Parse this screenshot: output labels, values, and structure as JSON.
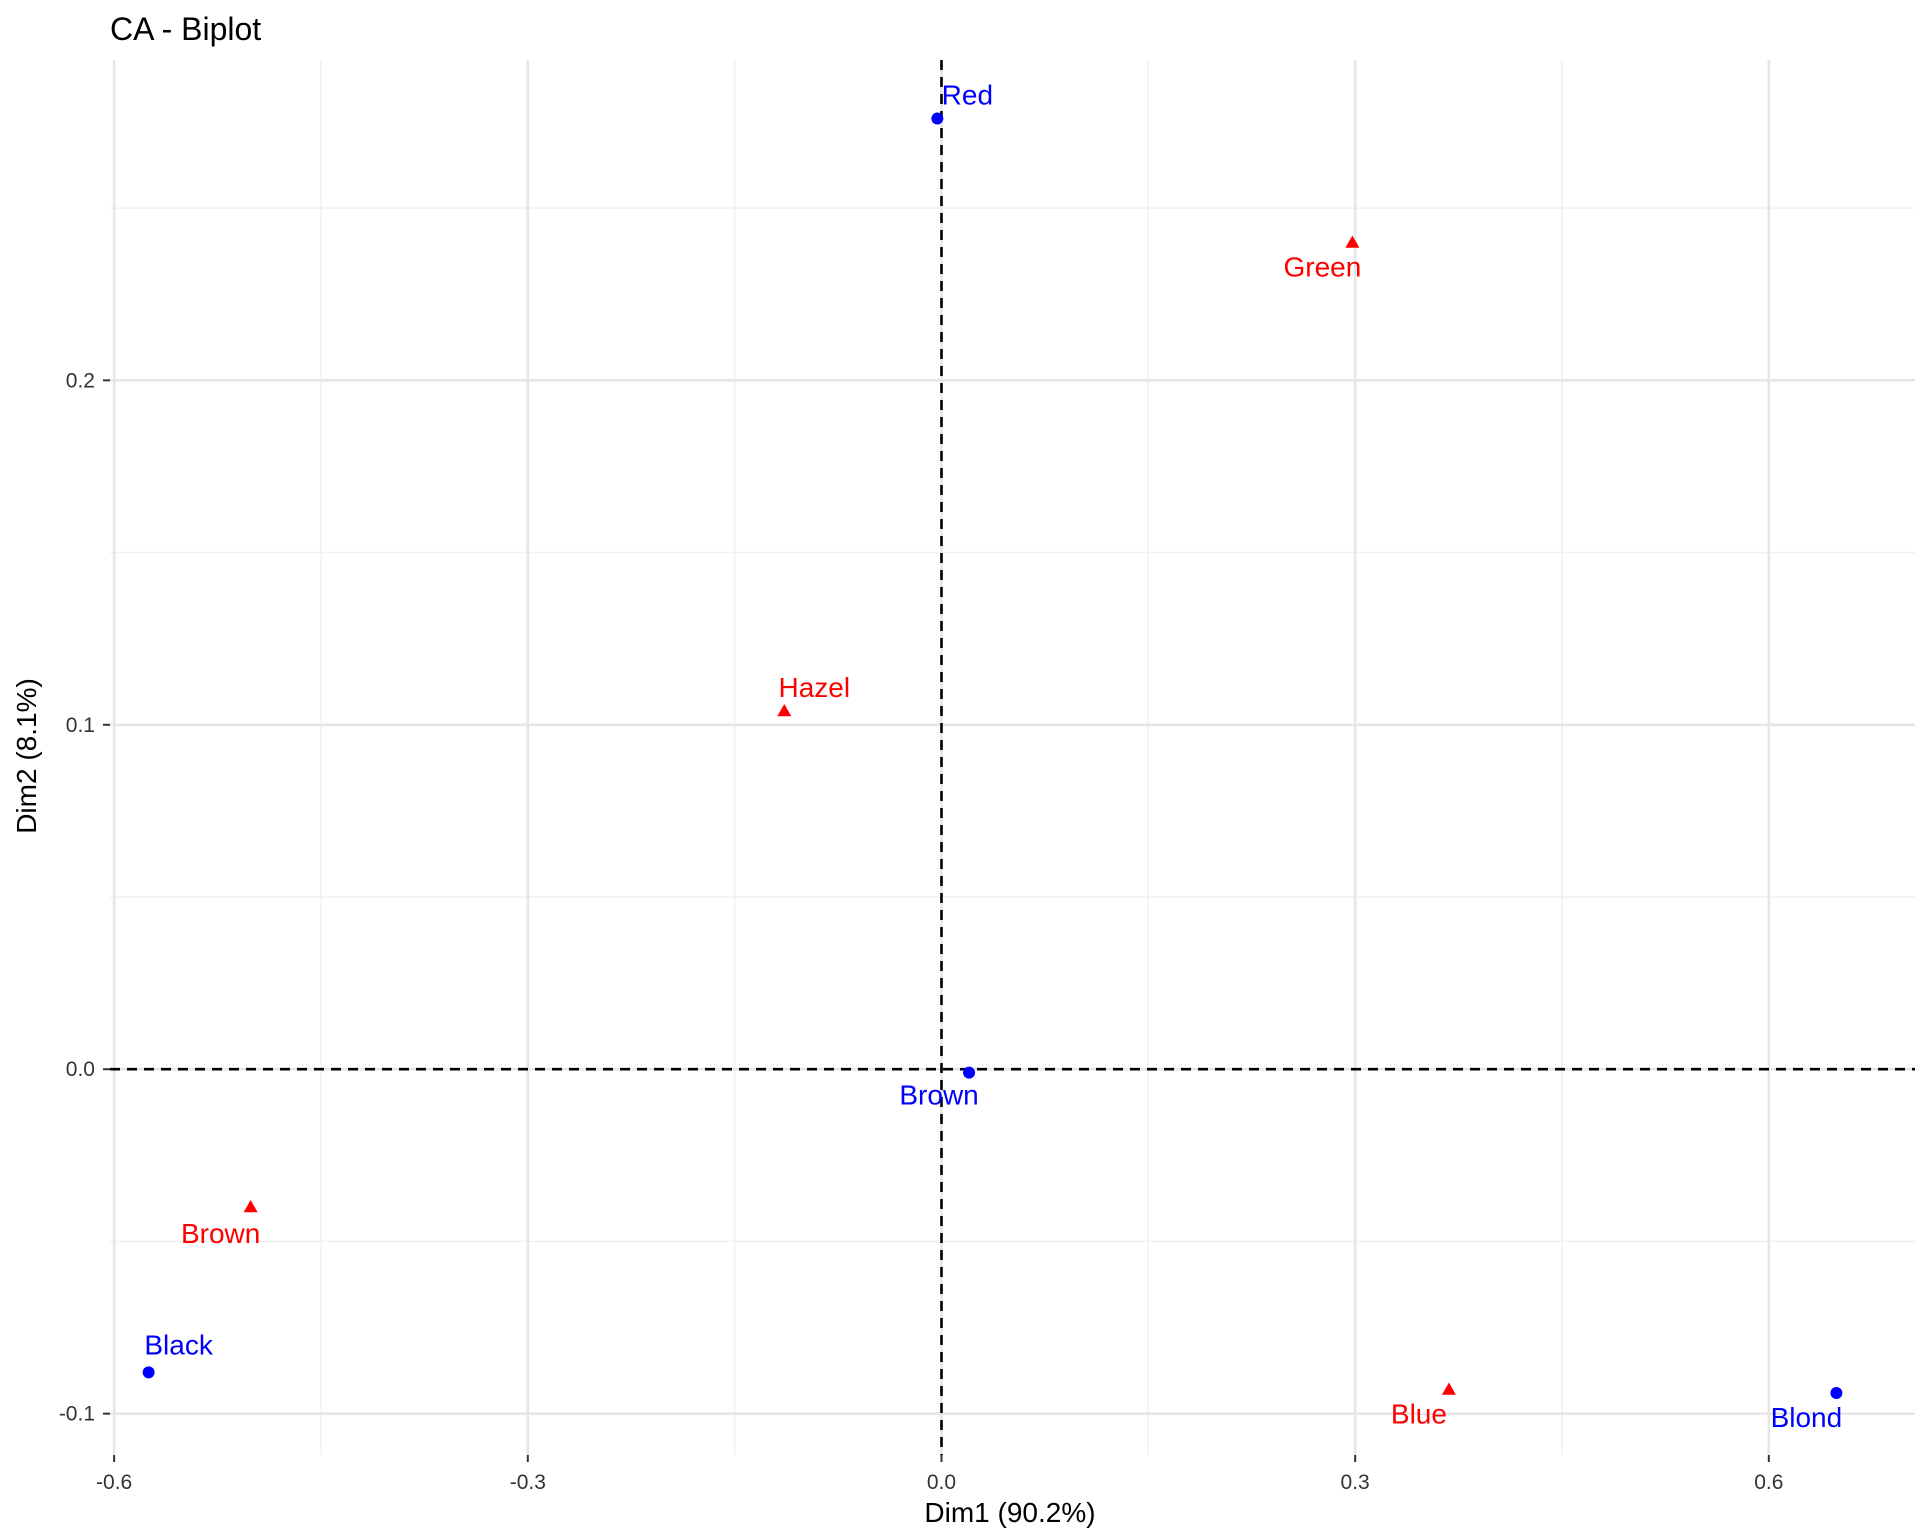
{
  "chart_data": {
    "type": "scatter",
    "title": "CA - Biplot",
    "xlabel": "Dim1 (90.2%)",
    "ylabel": "Dim2 (8.1%)",
    "xlim": [
      -0.603,
      0.706
    ],
    "ylim": [
      -0.112,
      0.293
    ],
    "x_ticks": [
      -0.6,
      -0.3,
      0.0,
      0.3,
      0.6
    ],
    "x_tick_labels": [
      "-0.6",
      "-0.3",
      "0.0",
      "0.3",
      "0.6"
    ],
    "y_ticks": [
      -0.1,
      0.0,
      0.1,
      0.2
    ],
    "y_tick_labels": [
      "-0.1",
      "0.0",
      "0.1",
      "0.2"
    ],
    "grid": true,
    "reference_lines": {
      "x": 0,
      "y": 0,
      "style": "dashed"
    },
    "series": [
      {
        "group": "rows",
        "color": "#0000ff",
        "marker": "circle",
        "points": [
          {
            "label": "Black",
            "x": -0.575,
            "y": -0.088
          },
          {
            "label": "Brown",
            "x": 0.02,
            "y": -0.001
          },
          {
            "label": "Red",
            "x": -0.003,
            "y": 0.276
          },
          {
            "label": "Blond",
            "x": 0.649,
            "y": -0.094
          }
        ]
      },
      {
        "group": "columns",
        "color": "#ff0000",
        "marker": "triangle",
        "points": [
          {
            "label": "Brown",
            "x": -0.501,
            "y": -0.04
          },
          {
            "label": "Blue",
            "x": 0.368,
            "y": -0.093
          },
          {
            "label": "Hazel",
            "x": -0.114,
            "y": 0.104
          },
          {
            "label": "Green",
            "x": 0.298,
            "y": 0.24
          }
        ]
      }
    ]
  }
}
